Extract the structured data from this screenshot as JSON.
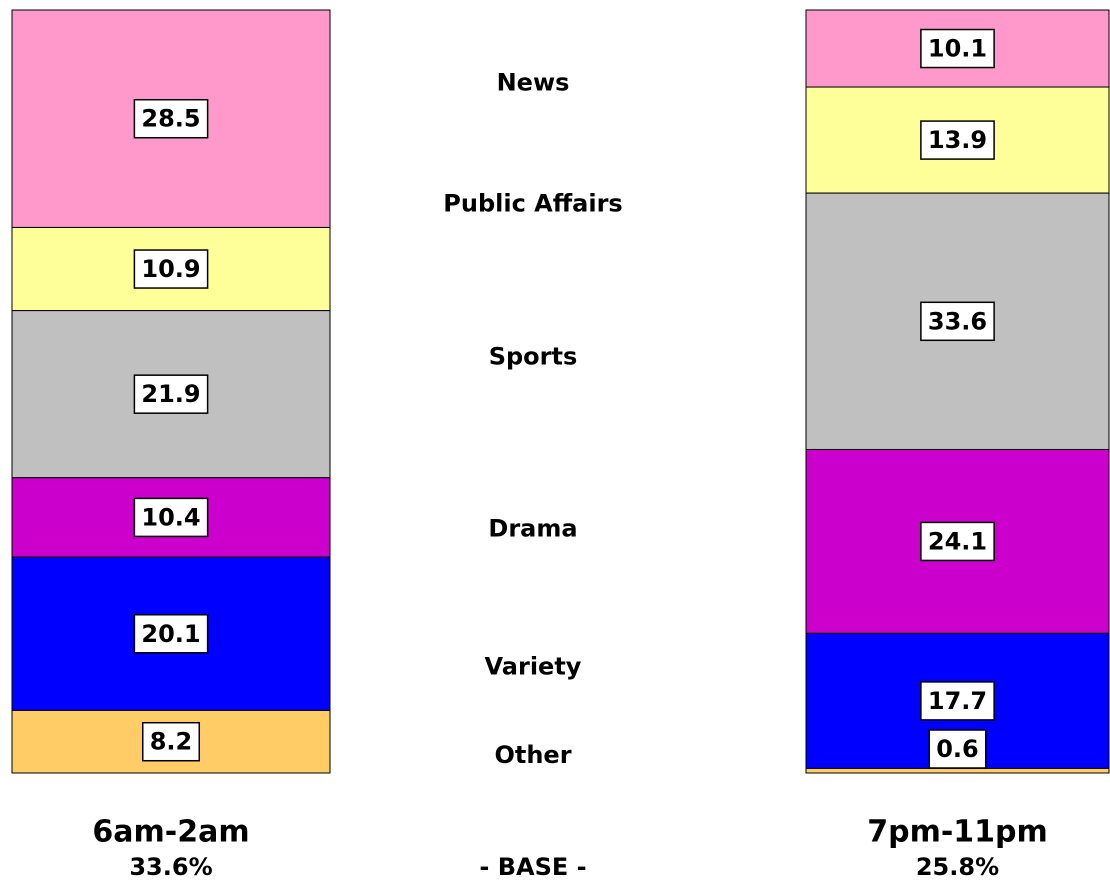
{
  "chart_data": {
    "type": "stacked_bar",
    "categories": [
      "6am-2am",
      "7pm-11pm"
    ],
    "base_labels": [
      "33.6%",
      "25.8%"
    ],
    "base_title": "- BASE -",
    "series": [
      {
        "name": "News",
        "color": "#ff99cc",
        "values": [
          28.5,
          10.1
        ]
      },
      {
        "name": "Public Affairs",
        "color": "#ffff99",
        "values": [
          10.9,
          13.9
        ]
      },
      {
        "name": "Sports",
        "color": "#c0c0c0",
        "values": [
          21.9,
          33.6
        ]
      },
      {
        "name": "Drama",
        "color": "#cc00cc",
        "values": [
          10.4,
          24.1
        ]
      },
      {
        "name": "Variety",
        "color": "#0000ff",
        "values": [
          20.1,
          17.7
        ]
      },
      {
        "name": "Other",
        "color": "#ffcc66",
        "values": [
          8.2,
          0.6
        ]
      }
    ]
  }
}
